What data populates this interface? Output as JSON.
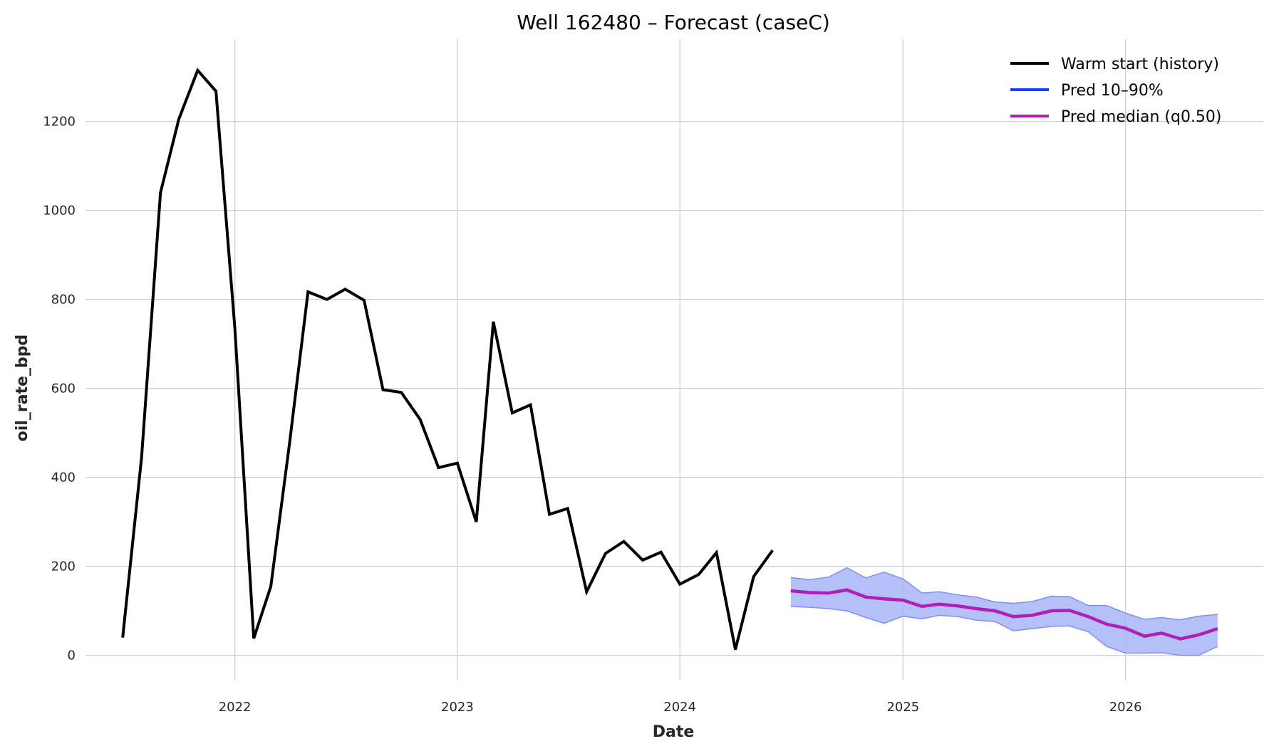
{
  "chart_data": {
    "type": "line",
    "title": "Well 162480 – Forecast (caseC)",
    "xlabel": "Date",
    "ylabel": "oil_rate_bpd",
    "xlim": [
      "2021-05-01",
      "2026-08-15"
    ],
    "ylim": [
      -55,
      1385
    ],
    "x_ticks": [
      "2022-01-01",
      "2023-01-01",
      "2024-01-01",
      "2025-01-01",
      "2026-01-01"
    ],
    "x_tick_labels": [
      "2022",
      "2023",
      "2024",
      "2025",
      "2026"
    ],
    "y_ticks": [
      0,
      200,
      400,
      600,
      800,
      1000,
      1200
    ],
    "y_tick_labels": [
      "0",
      "200",
      "400",
      "600",
      "800",
      "1000",
      "1200"
    ],
    "grid": true,
    "legend_position": "top-right",
    "series": [
      {
        "name": "Warm start (history)",
        "color": "#000000",
        "x": [
          "2021-07-01",
          "2021-08-01",
          "2021-09-01",
          "2021-10-01",
          "2021-11-01",
          "2021-12-01",
          "2022-01-01",
          "2022-02-01",
          "2022-03-01",
          "2022-04-01",
          "2022-05-01",
          "2022-06-01",
          "2022-07-01",
          "2022-08-01",
          "2022-09-01",
          "2022-10-01",
          "2022-11-01",
          "2022-12-01",
          "2023-01-01",
          "2023-02-01",
          "2023-03-01",
          "2023-04-01",
          "2023-05-01",
          "2023-06-01",
          "2023-07-01",
          "2023-08-01",
          "2023-09-01",
          "2023-10-01",
          "2023-11-01",
          "2023-12-01",
          "2024-01-01",
          "2024-02-01",
          "2024-03-01",
          "2024-04-01",
          "2024-05-01",
          "2024-06-01"
        ],
        "values": [
          40,
          445,
          1040,
          1205,
          1315,
          1268,
          735,
          38,
          155,
          480,
          817,
          800,
          823,
          798,
          597,
          591,
          530,
          422,
          432,
          300,
          750,
          545,
          563,
          317,
          330,
          143,
          229,
          256,
          214,
          232,
          160,
          182,
          231,
          13,
          177,
          236
        ]
      },
      {
        "name": "Pred 10–90%",
        "color": "#1a3cff",
        "fill": "#a8b5f8",
        "x": [
          "2024-07-01",
          "2024-08-01",
          "2024-09-01",
          "2024-10-01",
          "2024-11-01",
          "2024-12-01",
          "2025-01-01",
          "2025-02-01",
          "2025-03-01",
          "2025-04-01",
          "2025-05-01",
          "2025-06-01",
          "2025-07-01",
          "2025-08-01",
          "2025-09-01",
          "2025-10-01",
          "2025-11-01",
          "2025-12-01",
          "2026-01-01",
          "2026-02-01",
          "2026-03-01",
          "2026-04-01",
          "2026-05-01",
          "2026-06-01"
        ],
        "lower": [
          110,
          108,
          105,
          100,
          85,
          72,
          88,
          82,
          90,
          87,
          79,
          76,
          55,
          60,
          65,
          66,
          53,
          20,
          5,
          5,
          6,
          0,
          0,
          20
        ],
        "upper": [
          175,
          170,
          176,
          197,
          174,
          187,
          172,
          140,
          143,
          136,
          131,
          120,
          117,
          121,
          133,
          132,
          112,
          112,
          95,
          81,
          85,
          80,
          88,
          92
        ]
      },
      {
        "name": "Pred median (q0.50)",
        "color": "#b020b8",
        "x": [
          "2024-07-01",
          "2024-08-01",
          "2024-09-01",
          "2024-10-01",
          "2024-11-01",
          "2024-12-01",
          "2025-01-01",
          "2025-02-01",
          "2025-03-01",
          "2025-04-01",
          "2025-05-01",
          "2025-06-01",
          "2025-07-01",
          "2025-08-01",
          "2025-09-01",
          "2025-10-01",
          "2025-11-01",
          "2025-12-01",
          "2026-01-01",
          "2026-02-01",
          "2026-03-01",
          "2026-04-01",
          "2026-05-01",
          "2026-06-01"
        ],
        "values": [
          145,
          141,
          140,
          147,
          131,
          127,
          124,
          110,
          115,
          111,
          105,
          100,
          87,
          90,
          100,
          101,
          87,
          70,
          61,
          43,
          50,
          37,
          46,
          60
        ]
      }
    ]
  }
}
